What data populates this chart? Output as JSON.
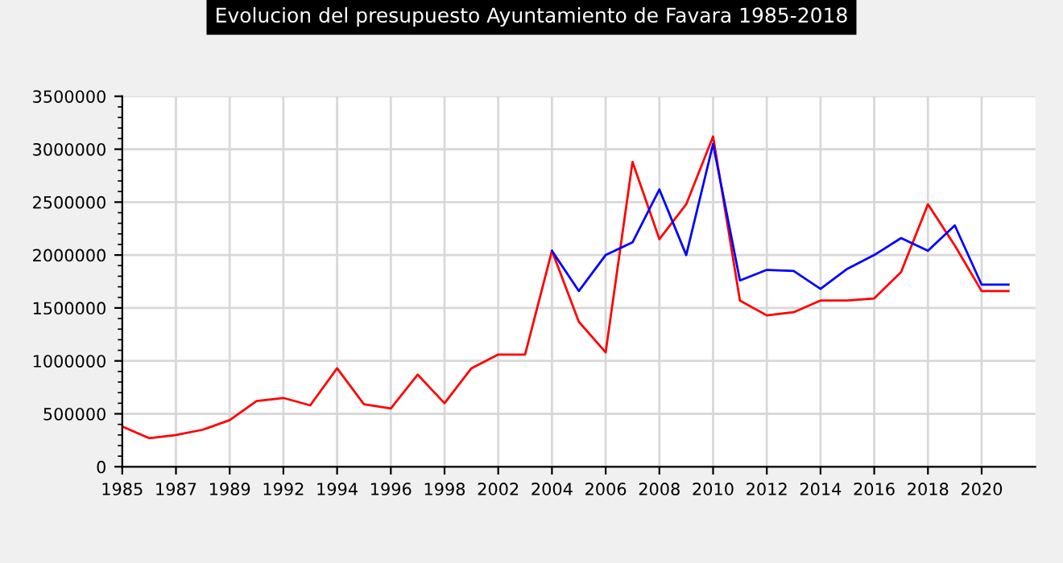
{
  "chart_data": {
    "type": "line",
    "title": "Evolucion del presupuesto Ayuntamiento de Favara 1985-2018",
    "categories": [
      "1985",
      null,
      "1987",
      null,
      "1989",
      null,
      "1992",
      null,
      "1994",
      null,
      "1996",
      null,
      "1998",
      null,
      "2002",
      null,
      "2004",
      null,
      "2006",
      null,
      "2008",
      null,
      "2010",
      null,
      "2012",
      null,
      "2014",
      null,
      "2016",
      null,
      "2018",
      null,
      "2020",
      null,
      null
    ],
    "series": [
      {
        "color": "#ff0000",
        "values": [
          380000,
          270000,
          300000,
          350000,
          440000,
          620000,
          650000,
          580000,
          930000,
          590000,
          550000,
          870000,
          600000,
          930000,
          1060000,
          1060000,
          2040000,
          1370000,
          1080000,
          2880000,
          2150000,
          2480000,
          3120000,
          1570000,
          1430000,
          1460000,
          1570000,
          1570000,
          1590000,
          1840000,
          2480000,
          2090000,
          1660000,
          1660000,
          null
        ]
      },
      {
        "color": "#0000ff",
        "values": [
          null,
          null,
          null,
          null,
          null,
          null,
          null,
          null,
          null,
          null,
          null,
          null,
          null,
          null,
          null,
          null,
          2040000,
          1660000,
          2000000,
          2120000,
          2620000,
          2000000,
          3050000,
          1760000,
          1860000,
          1850000,
          1680000,
          1870000,
          2000000,
          2160000,
          2040000,
          2280000,
          1720000,
          1720000,
          null
        ]
      }
    ],
    "ylim": [
      0,
      3500000
    ],
    "yticks": [
      0,
      500000,
      1000000,
      1500000,
      2000000,
      2500000,
      3000000,
      3500000
    ],
    "grid": true,
    "marker": "none",
    "line_style": "solid"
  }
}
